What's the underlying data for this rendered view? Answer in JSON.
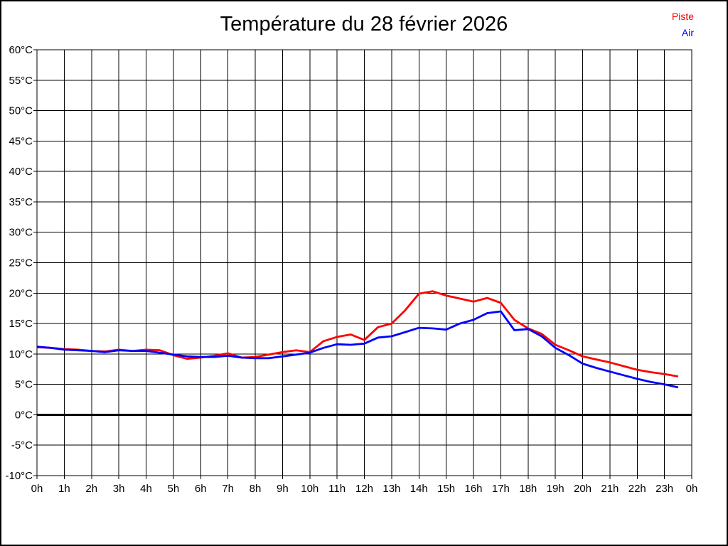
{
  "header": {
    "title": "Température du 28 février 2026"
  },
  "legend": {
    "entries": [
      {
        "label": "Piste",
        "color": "#ff0000"
      },
      {
        "label": "Air",
        "color": "#0000ff"
      }
    ],
    "position": "top-right"
  },
  "chart_data": {
    "type": "line",
    "title": "Température du 28 février 2026",
    "xlabel": "",
    "ylabel": "",
    "xlim": [
      0,
      24
    ],
    "ylim": [
      -10,
      60
    ],
    "grid": true,
    "zero_line_emphasized": true,
    "x_tick_hours": [
      0,
      1,
      2,
      3,
      4,
      5,
      6,
      7,
      8,
      9,
      10,
      11,
      12,
      13,
      14,
      15,
      16,
      17,
      18,
      19,
      20,
      21,
      22,
      23,
      24
    ],
    "x_tick_labels": [
      "0h",
      "1h",
      "2h",
      "3h",
      "4h",
      "5h",
      "6h",
      "7h",
      "8h",
      "9h",
      "10h",
      "11h",
      "12h",
      "13h",
      "14h",
      "15h",
      "16h",
      "17h",
      "18h",
      "19h",
      "20h",
      "21h",
      "22h",
      "23h",
      "0h"
    ],
    "y_tick_values": [
      60,
      55,
      50,
      45,
      40,
      35,
      30,
      25,
      20,
      15,
      10,
      5,
      0,
      -5,
      -10
    ],
    "y_tick_labels": [
      "60°C",
      "55°C",
      "50°C",
      "45°C",
      "40°C",
      "35°C",
      "30°C",
      "25°C",
      "20°C",
      "15°C",
      "10°C",
      "5°C",
      "0°C",
      "-5°C",
      "-10°C"
    ],
    "x_hours": [
      0,
      0.5,
      1,
      1.5,
      2,
      2.5,
      3,
      3.5,
      4,
      4.5,
      5,
      5.5,
      6,
      6.5,
      7,
      7.5,
      8,
      8.5,
      9,
      9.5,
      10,
      10.5,
      11,
      11.5,
      12,
      12.5,
      13,
      13.5,
      14,
      14.5,
      15,
      15.5,
      16,
      16.5,
      17,
      17.5,
      18,
      18.5,
      19,
      19.5,
      20,
      20.5,
      21,
      21.5,
      22,
      22.5,
      23,
      23.5
    ],
    "series": [
      {
        "name": "Piste",
        "color": "#ff0000",
        "values": [
          11.1,
          11.0,
          10.8,
          10.7,
          10.5,
          10.4,
          10.7,
          10.5,
          10.7,
          10.6,
          9.8,
          9.2,
          9.4,
          9.7,
          10.1,
          9.4,
          9.5,
          9.9,
          10.3,
          10.6,
          10.3,
          12.1,
          12.8,
          13.2,
          12.3,
          14.4,
          15.0,
          17.2,
          19.9,
          20.3,
          19.6,
          19.1,
          18.6,
          19.2,
          18.4,
          15.6,
          14.2,
          13.3,
          11.5,
          10.6,
          9.6,
          9.1,
          8.6,
          8.0,
          7.4,
          7.0,
          6.7,
          6.3
        ]
      },
      {
        "name": "Air",
        "color": "#0000ff",
        "values": [
          11.2,
          11.0,
          10.7,
          10.6,
          10.5,
          10.3,
          10.6,
          10.5,
          10.5,
          10.2,
          9.9,
          9.6,
          9.5,
          9.5,
          9.7,
          9.4,
          9.3,
          9.3,
          9.6,
          9.9,
          10.2,
          11.0,
          11.6,
          11.5,
          11.7,
          12.7,
          12.9,
          13.6,
          14.3,
          14.2,
          14.0,
          15.0,
          15.6,
          16.7,
          17.0,
          13.9,
          14.1,
          12.9,
          11.0,
          9.8,
          8.4,
          7.7,
          7.1,
          6.5,
          5.9,
          5.4,
          5.0,
          4.5
        ]
      }
    ],
    "legend_position": "top-right"
  }
}
